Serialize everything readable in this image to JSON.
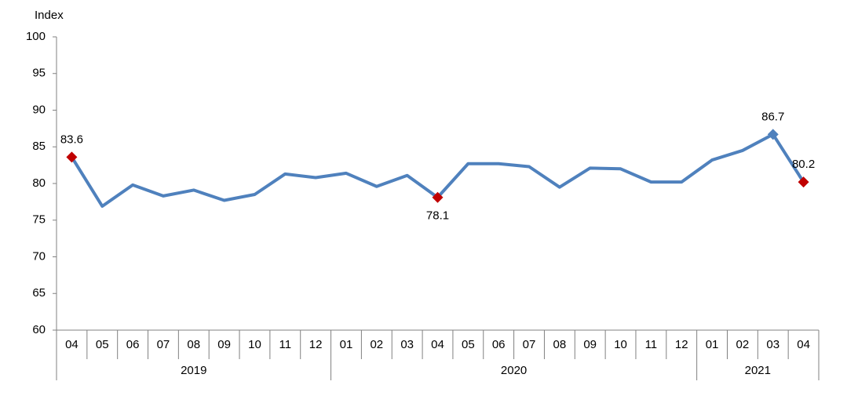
{
  "chart_data": {
    "type": "line",
    "y_label": "Index",
    "categories": [
      "04",
      "05",
      "06",
      "07",
      "08",
      "09",
      "10",
      "11",
      "12",
      "01",
      "02",
      "03",
      "04",
      "05",
      "06",
      "07",
      "08",
      "09",
      "10",
      "11",
      "12",
      "01",
      "02",
      "03",
      "04"
    ],
    "groups": [
      {
        "label": "2019",
        "count": 9
      },
      {
        "label": "2020",
        "count": 12
      },
      {
        "label": "2021",
        "count": 4
      }
    ],
    "series": [
      {
        "name": "Index",
        "color": "#4f81bd",
        "values": [
          83.6,
          76.9,
          79.8,
          78.3,
          79.1,
          77.7,
          78.5,
          81.3,
          80.8,
          81.4,
          79.6,
          81.1,
          78.1,
          82.7,
          82.7,
          82.3,
          79.5,
          82.1,
          82.0,
          80.2,
          80.2,
          83.2,
          84.5,
          86.7,
          80.2
        ]
      }
    ],
    "highlights": [
      {
        "index": 0,
        "color": "#c00000",
        "label_position": "above"
      },
      {
        "index": 12,
        "color": "#c00000",
        "label_position": "below"
      },
      {
        "index": 23,
        "color": "#4f81bd",
        "label_position": "above"
      },
      {
        "index": 24,
        "color": "#c00000",
        "label_position": "above"
      }
    ],
    "ylim": [
      60,
      100
    ],
    "yticks": [
      60,
      65,
      70,
      75,
      80,
      85,
      90,
      95,
      100
    ],
    "grid": false
  }
}
